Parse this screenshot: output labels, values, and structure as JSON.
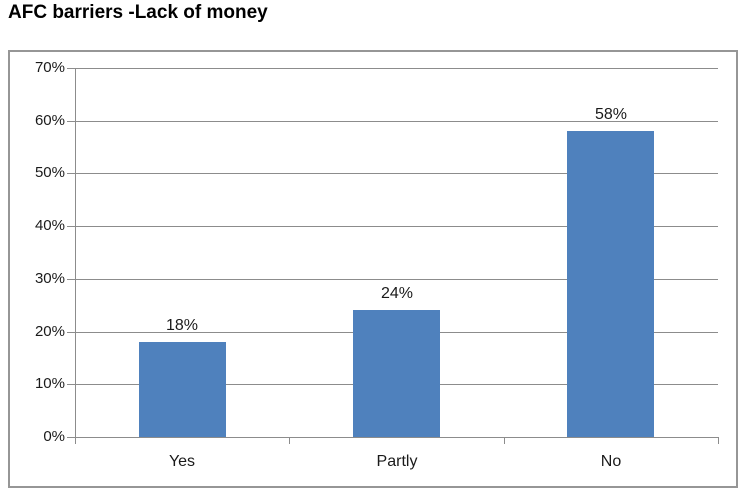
{
  "chart_data": {
    "type": "bar",
    "title": "AFC barriers -Lack of money",
    "categories": [
      "Yes",
      "Partly",
      "No"
    ],
    "values": [
      18,
      24,
      58
    ],
    "data_labels": [
      "18%",
      "24%",
      "58%"
    ],
    "y_ticks": [
      "0%",
      "10%",
      "20%",
      "30%",
      "40%",
      "50%",
      "60%",
      "70%"
    ],
    "y_tick_values": [
      0,
      10,
      20,
      30,
      40,
      50,
      60,
      70
    ],
    "ylim": [
      0,
      70
    ],
    "xlabel": "",
    "ylabel": "",
    "grid": true,
    "legend": "none",
    "colors": {
      "bar": "#4F81BD",
      "gridline": "#8C8C8C",
      "axis": "#8C8C8C",
      "frame_border": "#969696",
      "text": "#1a1a1a",
      "title_text": "#000000",
      "background": "#ffffff"
    }
  }
}
